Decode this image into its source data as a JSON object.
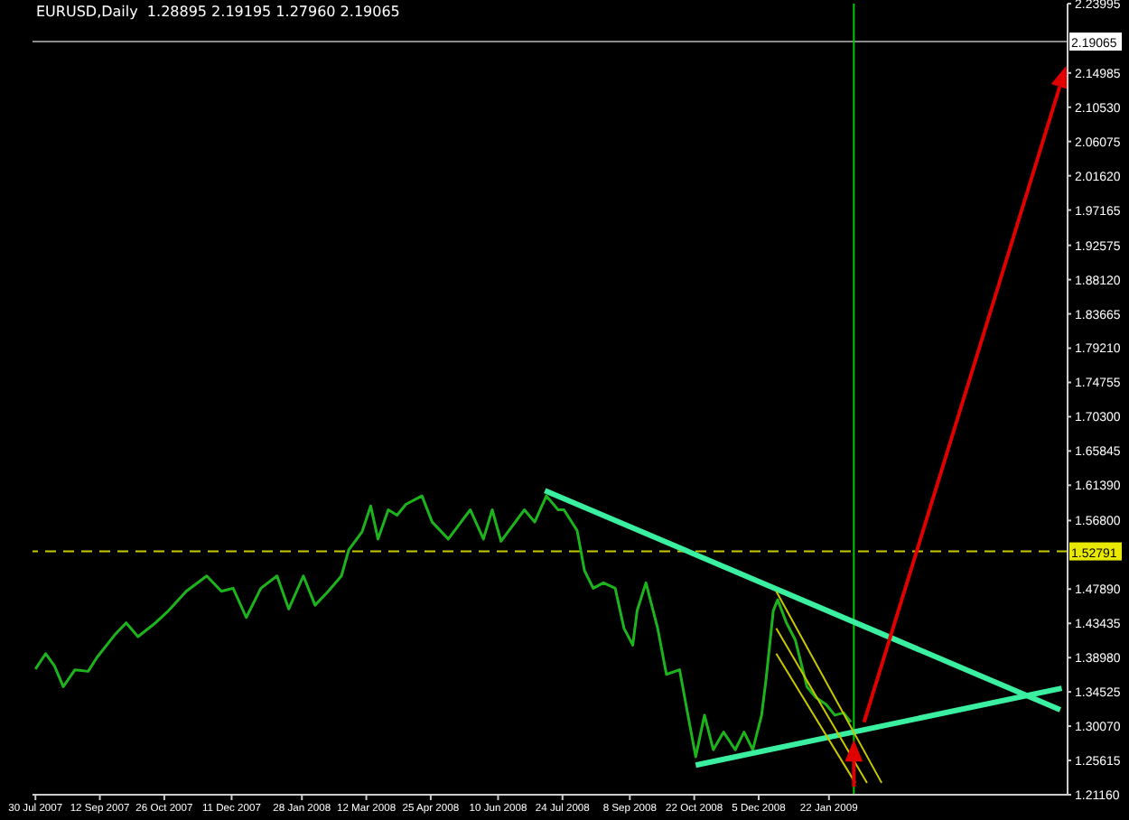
{
  "chart_data": {
    "type": "line",
    "title": "EURUSD,Daily  1.28895 2.19195 1.27960 2.19065",
    "series": [
      {
        "color": "#1db31d",
        "x": [
          "2007-07-30",
          "2007-08-06",
          "2007-08-12",
          "2007-08-18",
          "2007-08-26",
          "2007-09-04",
          "2007-09-10",
          "2007-09-22",
          "2007-09-30",
          "2007-10-08",
          "2007-10-20",
          "2007-10-29",
          "2007-11-10",
          "2007-11-24",
          "2007-12-04",
          "2007-12-12",
          "2007-12-21",
          "2007-12-31",
          "2008-01-11",
          "2008-01-19",
          "2008-01-29",
          "2008-02-06",
          "2008-02-15",
          "2008-02-24",
          "2008-02-29",
          "2008-03-09",
          "2008-03-15",
          "2008-03-20",
          "2008-03-27",
          "2008-04-02",
          "2008-04-08",
          "2008-04-19",
          "2008-04-26",
          "2008-05-07",
          "2008-05-22",
          "2008-05-31",
          "2008-06-06",
          "2008-06-12",
          "2008-06-28",
          "2008-07-05",
          "2008-07-13",
          "2008-07-21",
          "2008-07-25",
          "2008-08-03",
          "2008-08-08",
          "2008-08-14",
          "2008-08-21",
          "2008-08-29",
          "2008-09-04",
          "2008-09-10",
          "2008-09-13",
          "2008-09-19",
          "2008-09-27",
          "2008-10-03",
          "2008-10-12",
          "2008-10-17",
          "2008-10-23",
          "2008-10-29",
          "2008-11-04",
          "2008-11-11",
          "2008-11-19",
          "2008-11-25",
          "2008-12-01",
          "2008-12-07",
          "2008-12-10",
          "2008-12-15",
          "2008-12-18",
          "2008-12-24",
          "2008-12-30",
          "2009-01-07",
          "2009-01-13",
          "2009-01-20",
          "2009-01-26",
          "2009-02-01",
          "2009-02-06"
        ],
        "values": [
          1.375,
          1.395,
          1.379,
          1.352,
          1.374,
          1.372,
          1.39,
          1.419,
          1.435,
          1.417,
          1.435,
          1.451,
          1.476,
          1.496,
          1.476,
          1.48,
          1.442,
          1.48,
          1.496,
          1.453,
          1.496,
          1.458,
          1.476,
          1.496,
          1.53,
          1.553,
          1.587,
          1.544,
          1.582,
          1.575,
          1.589,
          1.6,
          1.566,
          1.544,
          1.582,
          1.544,
          1.582,
          1.541,
          1.582,
          1.566,
          1.6,
          1.582,
          1.582,
          1.555,
          1.503,
          1.48,
          1.487,
          1.48,
          1.428,
          1.406,
          1.451,
          1.487,
          1.428,
          1.368,
          1.374,
          1.322,
          1.261,
          1.315,
          1.27,
          1.293,
          1.27,
          1.293,
          1.27,
          1.315,
          1.361,
          1.451,
          1.465,
          1.435,
          1.413,
          1.352,
          1.338,
          1.329,
          1.315,
          1.318,
          1.306
        ]
      },
      {
        "color": "#3af0a0",
        "x": [
          "2008-07-12",
          "2009-06-29"
        ],
        "values": [
          1.607,
          1.322
        ]
      },
      {
        "color": "#3af0a0",
        "x": [
          "2008-10-23",
          "2009-06-30"
        ],
        "values": [
          1.25,
          1.35
        ]
      },
      {
        "color": "#c8c800",
        "x": [
          "2008-12-17",
          "2009-02-27"
        ],
        "values": [
          1.476,
          1.227
        ]
      },
      {
        "color": "#c8c800",
        "x": [
          "2008-12-17",
          "2009-02-17"
        ],
        "values": [
          1.428,
          1.227
        ]
      },
      {
        "color": "#c8c800",
        "x": [
          "2008-12-17",
          "2009-02-09"
        ],
        "values": [
          1.395,
          1.227
        ]
      }
    ],
    "xlim": [
      "2007-07-28",
      "2009-07-04"
    ],
    "xticks": [
      {
        "value": "2007-07-30",
        "label": "30 Jul 2007"
      },
      {
        "value": "2007-09-12",
        "label": "12 Sep 2007"
      },
      {
        "value": "2007-10-26",
        "label": "26 Oct 2007"
      },
      {
        "value": "2007-12-11",
        "label": "11 Dec 2007"
      },
      {
        "value": "2008-01-28",
        "label": "28 Jan 2008"
      },
      {
        "value": "2008-03-12",
        "label": "12 Mar 2008"
      },
      {
        "value": "2008-04-25",
        "label": "25 Apr 2008"
      },
      {
        "value": "2008-06-10",
        "label": "10 Jun 2008"
      },
      {
        "value": "2008-07-24",
        "label": "24 Jul 2008"
      },
      {
        "value": "2008-09-08",
        "label": "8 Sep 2008"
      },
      {
        "value": "2008-10-22",
        "label": "22 Oct 2008"
      },
      {
        "value": "2008-12-05",
        "label": "5 Dec 2008"
      },
      {
        "value": "2009-01-22",
        "label": "22 Jan 2009"
      }
    ],
    "ylim": [
      1.2116,
      2.24
    ],
    "yticks": [
      {
        "value": 1.2116,
        "label": "1.21160"
      },
      {
        "value": 1.25615,
        "label": "1.25615"
      },
      {
        "value": 1.3007,
        "label": "1.30070"
      },
      {
        "value": 1.34525,
        "label": "1.34525"
      },
      {
        "value": 1.3898,
        "label": "1.38980"
      },
      {
        "value": 1.43435,
        "label": "1.43435"
      },
      {
        "value": 1.4789,
        "label": "1.47890"
      },
      {
        "value": 1.568,
        "label": "1.56800"
      },
      {
        "value": 1.6139,
        "label": "1.61390"
      },
      {
        "value": 1.65845,
        "label": "1.65845"
      },
      {
        "value": 1.703,
        "label": "1.70300"
      },
      {
        "value": 1.74755,
        "label": "1.74755"
      },
      {
        "value": 1.7921,
        "label": "1.79210"
      },
      {
        "value": 1.83665,
        "label": "1.83665"
      },
      {
        "value": 1.8812,
        "label": "1.88120"
      },
      {
        "value": 1.92575,
        "label": "1.92575"
      },
      {
        "value": 1.97165,
        "label": "1.97165"
      },
      {
        "value": 2.0162,
        "label": "2.01620"
      },
      {
        "value": 2.06075,
        "label": "2.06075"
      },
      {
        "value": 2.1053,
        "label": "2.10530"
      },
      {
        "value": 2.14985,
        "label": "2.14985"
      },
      {
        "value": 2.23995,
        "label": "2.23995"
      }
    ],
    "ref_lines": [
      {
        "axis": "y",
        "value": 1.52791,
        "label": "1.52791",
        "color": "#c8c800",
        "line_style": "dashed"
      },
      {
        "axis": "y",
        "value": 2.19065,
        "label": "2.19065",
        "color": "#8a8a8a",
        "line_style": "solid"
      },
      {
        "axis": "x",
        "value": "2009-02-08",
        "color": "#00c800",
        "line_style": "solid"
      }
    ],
    "grid": false,
    "legend": false,
    "marker": "none",
    "line_style": "solid"
  }
}
